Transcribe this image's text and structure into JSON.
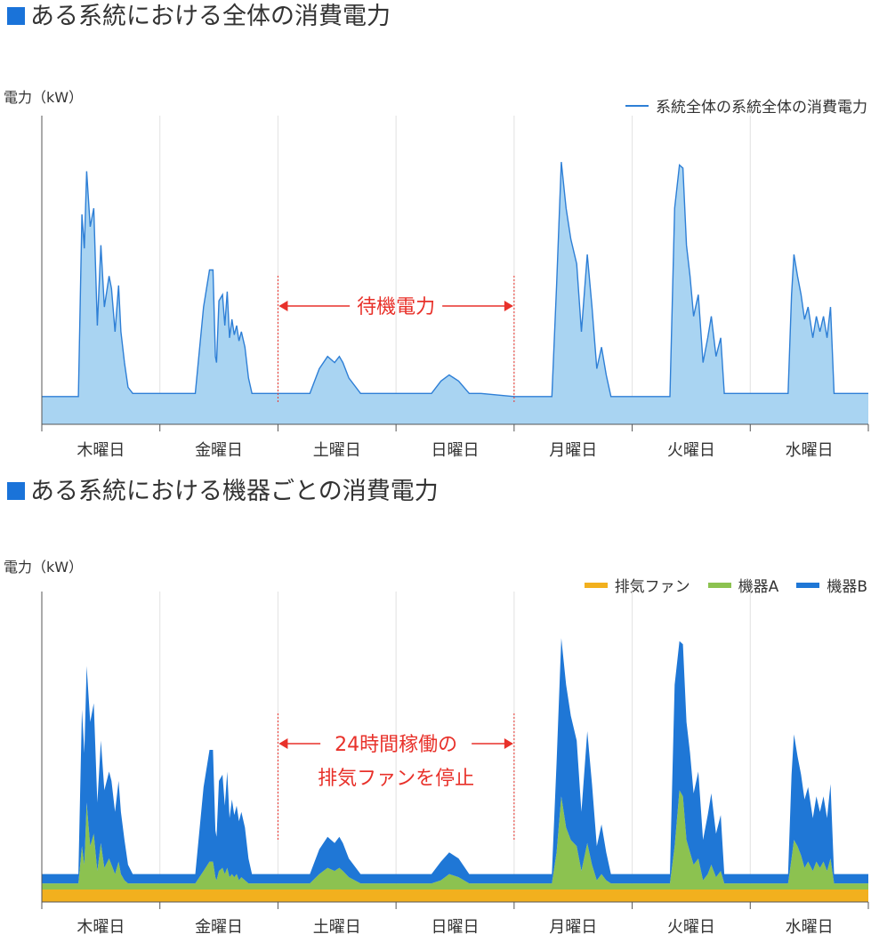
{
  "colors": {
    "title_marker": "#1a73d9",
    "axis": "#555555",
    "grid": "#e2e2e2",
    "annotation": "#e8312a",
    "total_fill": "#a9d4f2",
    "total_line": "#2e7fd6",
    "fan": "#f2b01e",
    "device_a": "#8cc250",
    "device_b": "#1f77d6"
  },
  "charts": [
    {
      "title": "ある系統における全体の消費電力",
      "ylabel": "電力（kW）"
    },
    {
      "title": "ある系統における機器ごとの消費電力",
      "ylabel": "電力（kW）"
    }
  ],
  "chart_data": [
    {
      "type": "area",
      "title": "ある系統における全体の消費電力",
      "ylabel": "電力（kW）",
      "categories": [
        "木曜日",
        "金曜日",
        "土曜日",
        "日曜日",
        "月曜日",
        "火曜日",
        "水曜日"
      ],
      "xlim": [
        0,
        7
      ],
      "ylim": [
        0,
        100
      ],
      "grid": "vertical",
      "legend_position": "top-right",
      "series": [
        {
          "name": "系統全体の系統全体の消費電力",
          "x": [
            0,
            0.31,
            0.34,
            0.36,
            0.38,
            0.41,
            0.44,
            0.47,
            0.5,
            0.53,
            0.57,
            0.59,
            0.62,
            0.65,
            0.67,
            0.7,
            0.73,
            0.77,
            0.83,
            1.0,
            1.3,
            1.37,
            1.42,
            1.45,
            1.47,
            1.48,
            1.5,
            1.53,
            1.55,
            1.57,
            1.59,
            1.61,
            1.63,
            1.65,
            1.67,
            1.69,
            1.72,
            1.75,
            1.78,
            1.83,
            2.0,
            2.27,
            2.35,
            2.42,
            2.48,
            2.52,
            2.55,
            2.6,
            2.7,
            2.77,
            3.0,
            3.3,
            3.38,
            3.45,
            3.53,
            3.62,
            3.72,
            4.0,
            4.32,
            4.36,
            4.4,
            4.44,
            4.48,
            4.53,
            4.57,
            4.62,
            4.66,
            4.7,
            4.74,
            4.78,
            4.82,
            5.0,
            5.32,
            5.36,
            5.4,
            5.43,
            5.46,
            5.49,
            5.52,
            5.56,
            5.6,
            5.64,
            5.67,
            5.71,
            5.75,
            5.78,
            5.82,
            6.0,
            6.32,
            6.35,
            6.37,
            6.4,
            6.43,
            6.46,
            6.49,
            6.53,
            6.56,
            6.59,
            6.62,
            6.65,
            6.68,
            6.71,
            6.75,
            6.79,
            7.0
          ],
          "y": [
            9,
            9,
            68,
            57,
            82,
            64,
            70,
            32,
            58,
            38,
            48,
            44,
            30,
            45,
            30,
            20,
            12,
            10,
            10,
            10,
            10,
            38,
            50,
            50,
            22,
            20,
            40,
            42,
            32,
            43,
            28,
            34,
            29,
            32,
            27,
            30,
            25,
            15,
            10,
            10,
            10,
            10,
            18,
            22,
            20,
            22,
            20,
            15,
            10,
            10,
            10,
            10,
            14,
            16,
            14,
            10,
            10,
            9,
            9,
            45,
            85,
            70,
            60,
            52,
            30,
            55,
            38,
            18,
            25,
            16,
            9,
            9,
            9,
            70,
            84,
            83,
            58,
            48,
            35,
            42,
            20,
            28,
            35,
            22,
            28,
            10,
            10,
            10,
            10,
            42,
            55,
            48,
            42,
            34,
            38,
            28,
            35,
            30,
            35,
            28,
            38,
            10,
            10,
            10,
            10
          ]
        }
      ],
      "annotations": [
        {
          "text": "待機電力",
          "x_start": 2,
          "x_end": 4
        }
      ]
    },
    {
      "type": "area",
      "stacked": true,
      "title": "ある系統における機器ごとの消費電力",
      "ylabel": "電力（kW）",
      "categories": [
        "木曜日",
        "金曜日",
        "土曜日",
        "日曜日",
        "月曜日",
        "火曜日",
        "水曜日"
      ],
      "xlim": [
        0,
        7
      ],
      "ylim": [
        0,
        100
      ],
      "grid": "vertical",
      "legend_position": "top-right",
      "x": [
        0,
        0.31,
        0.34,
        0.36,
        0.38,
        0.41,
        0.44,
        0.47,
        0.5,
        0.53,
        0.57,
        0.59,
        0.62,
        0.65,
        0.67,
        0.7,
        0.73,
        0.77,
        0.83,
        1.0,
        1.3,
        1.37,
        1.42,
        1.45,
        1.47,
        1.48,
        1.5,
        1.53,
        1.55,
        1.57,
        1.59,
        1.61,
        1.63,
        1.65,
        1.67,
        1.69,
        1.72,
        1.75,
        1.78,
        1.83,
        2.0,
        2.27,
        2.35,
        2.42,
        2.48,
        2.52,
        2.55,
        2.6,
        2.7,
        2.77,
        3.0,
        3.3,
        3.38,
        3.45,
        3.53,
        3.62,
        3.72,
        4.0,
        4.32,
        4.36,
        4.4,
        4.44,
        4.48,
        4.53,
        4.57,
        4.62,
        4.66,
        4.7,
        4.74,
        4.78,
        4.82,
        5.0,
        5.32,
        5.36,
        5.4,
        5.43,
        5.46,
        5.49,
        5.52,
        5.56,
        5.6,
        5.64,
        5.67,
        5.71,
        5.75,
        5.78,
        5.82,
        6.0,
        6.32,
        6.35,
        6.37,
        6.4,
        6.43,
        6.46,
        6.49,
        6.53,
        6.56,
        6.59,
        6.62,
        6.65,
        6.68,
        6.71,
        6.75,
        6.79,
        7.0
      ],
      "series": [
        {
          "name": "排気ファン",
          "values": [
            4,
            4,
            4,
            4,
            4,
            4,
            4,
            4,
            4,
            4,
            4,
            4,
            4,
            4,
            4,
            4,
            4,
            4,
            4,
            4,
            4,
            4,
            4,
            4,
            4,
            4,
            4,
            4,
            4,
            4,
            4,
            4,
            4,
            4,
            4,
            4,
            4,
            4,
            4,
            4,
            4,
            4,
            4,
            4,
            4,
            4,
            4,
            4,
            4,
            4,
            4,
            4,
            4,
            4,
            4,
            4,
            4,
            4,
            4,
            4,
            4,
            4,
            4,
            4,
            4,
            4,
            4,
            4,
            4,
            4,
            4,
            4,
            4,
            4,
            4,
            4,
            4,
            4,
            4,
            4,
            4,
            4,
            4,
            4,
            4,
            4,
            4,
            4,
            4,
            4,
            4,
            4,
            4,
            4,
            4,
            4,
            4,
            4,
            4,
            4,
            4,
            4,
            4,
            4,
            4
          ]
        },
        {
          "name": "機器A",
          "values": [
            2,
            2,
            14,
            8,
            28,
            14,
            18,
            6,
            15,
            7,
            10,
            8,
            5,
            9,
            5,
            3,
            2,
            2,
            2,
            2,
            2,
            6,
            9,
            9,
            4,
            3,
            6,
            7,
            5,
            7,
            4,
            5,
            4,
            5,
            3,
            4,
            3,
            2,
            2,
            2,
            2,
            2,
            5,
            7,
            6,
            7,
            6,
            4,
            2,
            2,
            2,
            2,
            3,
            5,
            4,
            2,
            2,
            2,
            2,
            12,
            30,
            20,
            16,
            14,
            6,
            15,
            8,
            3,
            5,
            3,
            2,
            2,
            2,
            14,
            32,
            30,
            16,
            12,
            8,
            10,
            3,
            5,
            8,
            4,
            6,
            2,
            2,
            2,
            2,
            10,
            16,
            14,
            11,
            7,
            9,
            6,
            9,
            7,
            9,
            6,
            10,
            2,
            2,
            2,
            2
          ]
        },
        {
          "name": "機器B",
          "values": [
            3,
            3,
            44,
            36,
            44,
            40,
            42,
            22,
            33,
            25,
            28,
            27,
            20,
            26,
            20,
            13,
            6,
            3,
            3,
            3,
            3,
            27,
            36,
            36,
            15,
            14,
            29,
            30,
            22,
            31,
            19,
            24,
            20,
            22,
            19,
            21,
            17,
            8,
            3,
            3,
            3,
            3,
            8,
            10,
            9,
            10,
            9,
            6,
            3,
            3,
            3,
            3,
            6,
            7,
            6,
            3,
            3,
            3,
            3,
            29,
            51,
            46,
            40,
            34,
            19,
            36,
            26,
            11,
            16,
            9,
            3,
            3,
            3,
            52,
            48,
            49,
            38,
            32,
            23,
            28,
            13,
            19,
            23,
            14,
            18,
            3,
            3,
            3,
            3,
            27,
            34,
            29,
            26,
            22,
            24,
            17,
            21,
            18,
            21,
            17,
            24,
            3,
            3,
            3,
            3
          ]
        }
      ],
      "annotations": [
        {
          "text": "24時間稼働の\n排気ファンを停止",
          "x_start": 2,
          "x_end": 4
        }
      ]
    }
  ]
}
